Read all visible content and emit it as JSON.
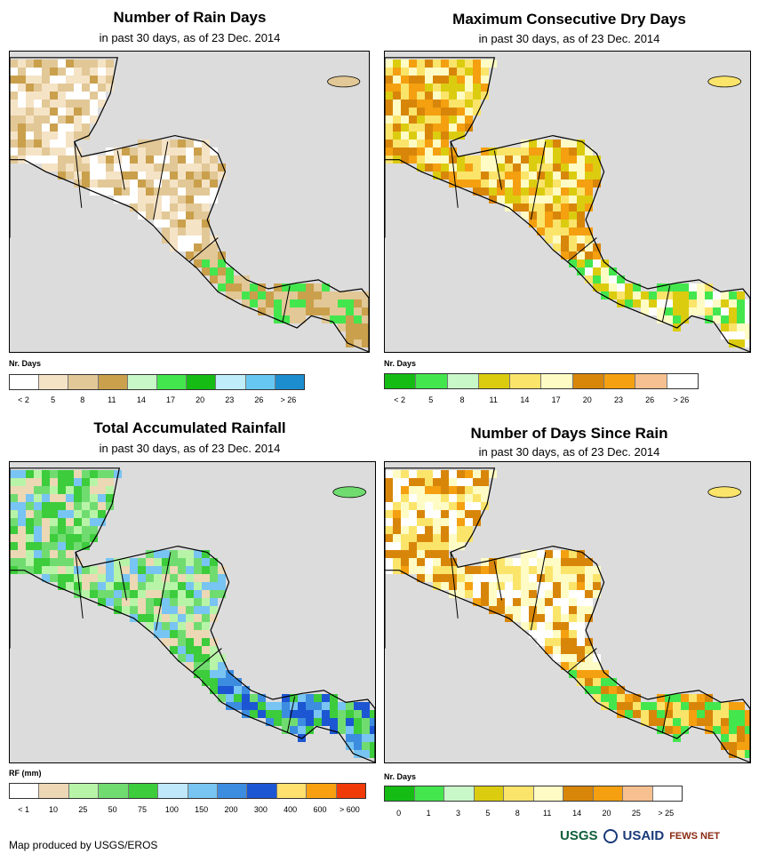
{
  "panels": [
    {
      "id": "rain_days",
      "title": "Number of Rain Days",
      "subtitle": "in past 30 days, as of 23 Dec. 2014",
      "legend_title": "Nr. Days",
      "legend_ticks": [
        "< 2",
        "5",
        "8",
        "11",
        "14",
        "17",
        "20",
        "23",
        "26",
        "> 26"
      ],
      "legend_colors": [
        "#ffffff",
        "#f5e3c6",
        "#e2c896",
        "#caa04c",
        "#c8f7c8",
        "#44e64e",
        "#14bc14",
        "#bfeefa",
        "#66c8f2",
        "#1c8ed0"
      ],
      "map_palette": [
        "#ffffff",
        "#f5e3c6",
        "#e2c896",
        "#caa04c",
        "#44e64e"
      ]
    },
    {
      "id": "max_dry_days",
      "title": "Maximum Consecutive Dry Days",
      "subtitle": "in past 30 days, as of 23 Dec. 2014",
      "legend_title": "Nr. Days",
      "legend_ticks": [
        "< 2",
        "5",
        "8",
        "11",
        "14",
        "17",
        "20",
        "23",
        "26",
        "> 26"
      ],
      "legend_colors": [
        "#14bc14",
        "#44e64e",
        "#c8f7c8",
        "#dccc10",
        "#fbe46a",
        "#fefcc4",
        "#d8860a",
        "#f4a010",
        "#f6c090",
        "#ffffff"
      ],
      "map_palette": [
        "#d8860a",
        "#f4a010",
        "#fbe46a",
        "#dccc10",
        "#fefcc4",
        "#44e64e",
        "#ffffff"
      ]
    },
    {
      "id": "total_rainfall",
      "title": "Total Accumulated Rainfall",
      "subtitle": "in past 30 days, as of 23 Dec. 2014",
      "legend_title": "RF (mm)",
      "legend_ticks": [
        "< 1",
        "10",
        "25",
        "50",
        "75",
        "100",
        "150",
        "200",
        "300",
        "400",
        "600",
        "> 600"
      ],
      "legend_colors": [
        "#ffffff",
        "#ecd8b4",
        "#b8f4a8",
        "#70dc70",
        "#3ccc3c",
        "#bfe8fa",
        "#78c4f2",
        "#3c8ce0",
        "#1c56d2",
        "#fde06e",
        "#f9a010",
        "#f03a08"
      ],
      "map_palette": [
        "#ecd8b4",
        "#b8f4a8",
        "#70dc70",
        "#3ccc3c",
        "#78c4f2",
        "#3c8ce0",
        "#1c56d2"
      ]
    },
    {
      "id": "days_since_rain",
      "title": "Number of Days Since Rain",
      "subtitle": "in past 30 days, as of 23 Dec. 2014",
      "legend_title": "Nr. Days",
      "legend_ticks": [
        "0",
        "1",
        "3",
        "5",
        "8",
        "11",
        "14",
        "20",
        "25",
        "> 25"
      ],
      "legend_colors": [
        "#14bc14",
        "#44e64e",
        "#c8f7c8",
        "#dccc10",
        "#fbe46a",
        "#fefcc4",
        "#d8860a",
        "#f4a010",
        "#f6c090",
        "#ffffff"
      ],
      "map_palette": [
        "#ffffff",
        "#fefcc4",
        "#fbe46a",
        "#d8860a",
        "#f4a010",
        "#44e64e"
      ]
    }
  ],
  "footer": {
    "credit": "Map produced by USGS/EROS",
    "logos": [
      "USGS",
      "USAID",
      "FEWS NET"
    ]
  }
}
